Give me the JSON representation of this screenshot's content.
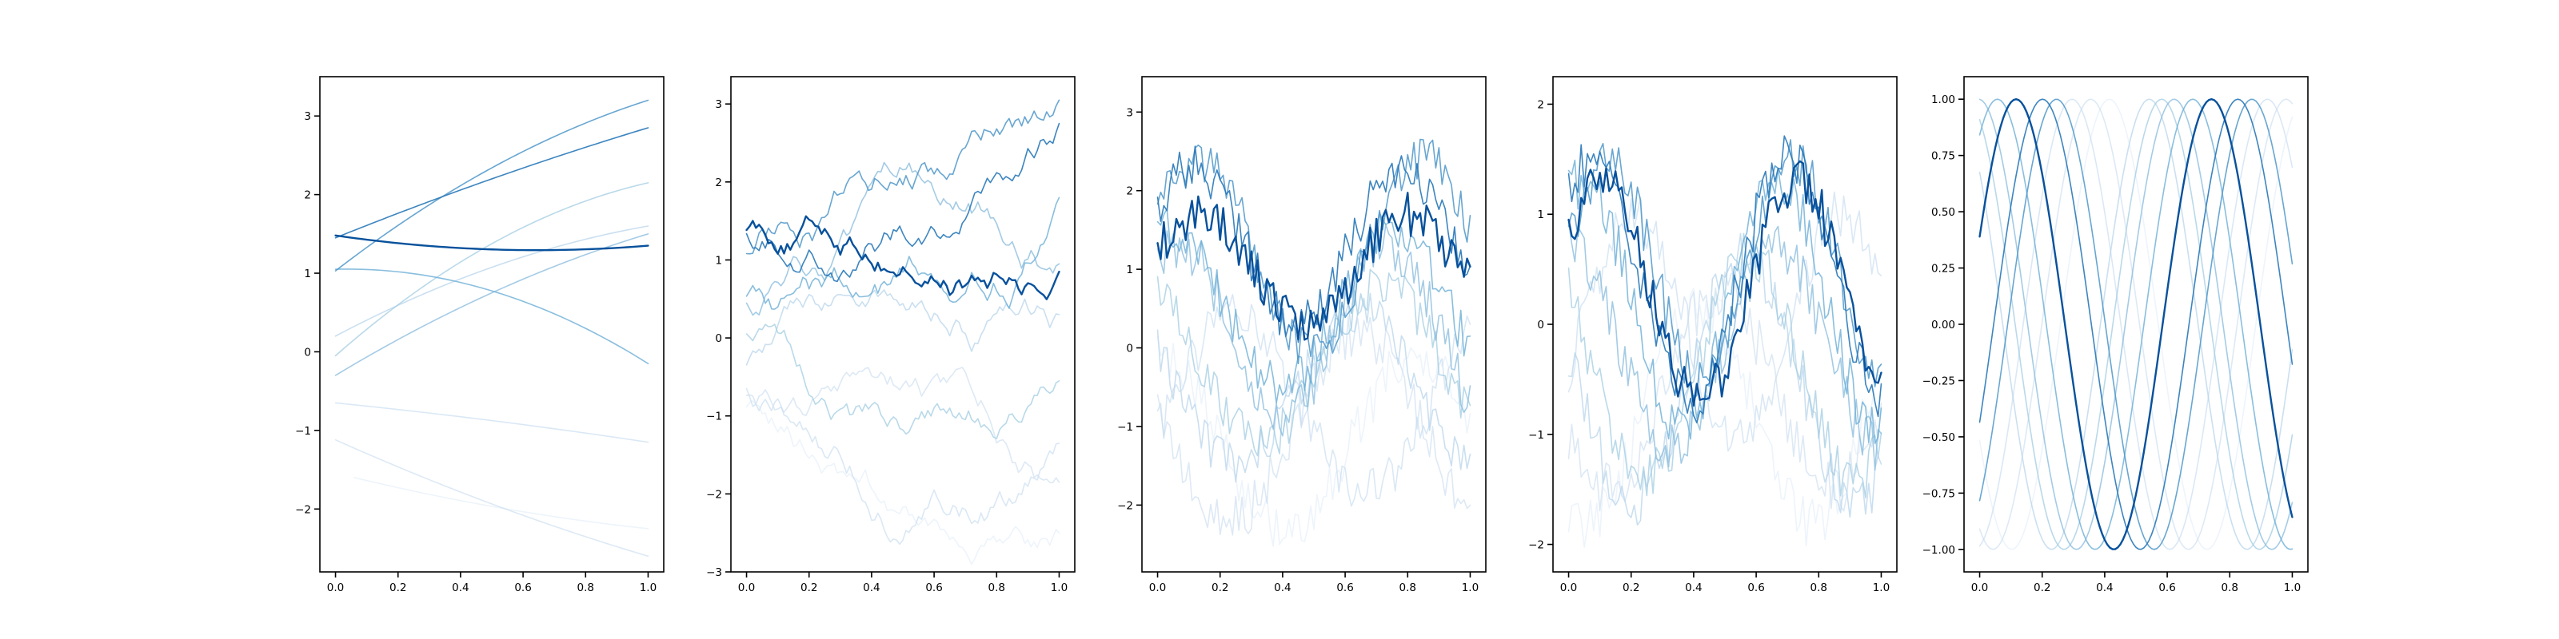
{
  "palette": {
    "series_colors": [
      "#deebf7",
      "#c6dbef",
      "#c6dbef",
      "#b3d1ea",
      "#9ecae1",
      "#86b9dc",
      "#6baed6",
      "#4d97c9",
      "#2878b8",
      "#08519c"
    ],
    "series_opacity": [
      0.55,
      0.6,
      0.65,
      0.7,
      0.72,
      0.75,
      0.8,
      0.85,
      0.9,
      1.0
    ]
  },
  "chart_data": [
    {
      "type": "line",
      "generator": "polynomial",
      "xlim": [
        -0.05,
        1.05
      ],
      "ylim": [
        -2.8,
        3.5
      ],
      "xticks": [
        "0.0",
        "0.2",
        "0.4",
        "0.6",
        "0.8",
        "1.0"
      ],
      "yticks": [
        "−2",
        "−1",
        "0",
        "1",
        "2",
        "3"
      ],
      "series": [
        {
          "x_start": 0.0,
          "y0": 1.48,
          "y1": 1.35,
          "curv": 0.45
        },
        {
          "x_start": 0.0,
          "y0": 1.45,
          "y1": 2.85,
          "curv": -0.2
        },
        {
          "x_start": 0.0,
          "y0": 1.03,
          "y1": 3.2,
          "curv": -0.9
        },
        {
          "x_start": 0.0,
          "y0": 1.05,
          "y1": -0.15,
          "curv": -1.3
        },
        {
          "x_start": 0.0,
          "y0": -0.3,
          "y1": 1.5,
          "curv": -0.6
        },
        {
          "x_start": 0.0,
          "y0": -0.05,
          "y1": 2.15,
          "curv": -1.3
        },
        {
          "x_start": 0.0,
          "y0": 0.2,
          "y1": 1.6,
          "curv": -0.7
        },
        {
          "x_start": 0.0,
          "y0": -0.65,
          "y1": -1.15,
          "curv": -0.1
        },
        {
          "x_start": 0.0,
          "y0": -1.12,
          "y1": -2.6,
          "curv": 0.3
        },
        {
          "x_start": 0.06,
          "y0": -1.6,
          "y1": -2.25,
          "curv": 0.25
        }
      ]
    },
    {
      "type": "line",
      "generator": "random_walk",
      "xlim": [
        -0.05,
        1.05
      ],
      "ylim": [
        -3.0,
        3.35
      ],
      "xticks": [
        "0.0",
        "0.2",
        "0.4",
        "0.6",
        "0.8",
        "1.0"
      ],
      "yticks": [
        "−3",
        "−2",
        "−1",
        "0",
        "1",
        "2",
        "3"
      ],
      "series": [
        {
          "y0": 1.5,
          "y1": 0.85,
          "jitter": 0.12,
          "drift": 0.15
        },
        {
          "y0": 1.45,
          "y1": 2.75,
          "jitter": 0.12,
          "drift": 0.4
        },
        {
          "y0": 1.2,
          "y1": 3.05,
          "jitter": 0.13,
          "drift": 0.3
        },
        {
          "y0": 0.65,
          "y1": 1.8,
          "jitter": 0.13,
          "drift": 0.5
        },
        {
          "y0": 0.55,
          "y1": 0.95,
          "jitter": 0.12,
          "drift": 0.4
        },
        {
          "y0": 0.15,
          "y1": -0.55,
          "jitter": 0.12,
          "drift": 0.6
        },
        {
          "y0": -0.25,
          "y1": 0.3,
          "jitter": 0.12,
          "drift": 0.5
        },
        {
          "y0": -0.55,
          "y1": -1.35,
          "jitter": 0.13,
          "drift": 0.7
        },
        {
          "y0": -0.65,
          "y1": -1.85,
          "jitter": 0.12,
          "drift": 0.5
        },
        {
          "y0": -0.8,
          "y1": -2.5,
          "jitter": 0.12,
          "drift": 0.6
        }
      ]
    },
    {
      "type": "line",
      "generator": "sine_noise",
      "xlim": [
        -0.05,
        1.05
      ],
      "ylim": [
        -2.85,
        3.45
      ],
      "xticks": [
        "0.0",
        "0.2",
        "0.4",
        "0.6",
        "0.8",
        "1.0"
      ],
      "yticks": [
        "−2",
        "−1",
        "0",
        "1",
        "2",
        "3"
      ],
      "series": [
        {
          "phase": 0.3,
          "amp": 0.7,
          "offset": 1.0,
          "freq": 1.5,
          "noise": 0.28
        },
        {
          "phase": 0.5,
          "amp": 1.0,
          "offset": 1.3,
          "freq": 1.5,
          "noise": 0.28
        },
        {
          "phase": 0.4,
          "amp": 1.2,
          "offset": 1.2,
          "freq": 1.4,
          "noise": 0.3
        },
        {
          "phase": 1.2,
          "amp": 1.0,
          "offset": 0.5,
          "freq": 1.4,
          "noise": 0.3
        },
        {
          "phase": 0.9,
          "amp": 1.1,
          "offset": 0.2,
          "freq": 1.5,
          "noise": 0.32
        },
        {
          "phase": 2.0,
          "amp": 1.0,
          "offset": -0.2,
          "freq": 1.3,
          "noise": 0.3
        },
        {
          "phase": 2.6,
          "amp": 1.0,
          "offset": -0.5,
          "freq": 1.3,
          "noise": 0.3
        },
        {
          "phase": -0.3,
          "amp": 1.1,
          "offset": -0.7,
          "freq": 1.2,
          "noise": 0.3
        },
        {
          "phase": 3.0,
          "amp": 1.2,
          "offset": -1.0,
          "freq": 1.2,
          "noise": 0.3
        },
        {
          "phase": 1.6,
          "amp": 1.1,
          "offset": -1.2,
          "freq": 1.2,
          "noise": 0.3
        }
      ]
    },
    {
      "type": "line",
      "generator": "sine_noise",
      "xlim": [
        -0.05,
        1.05
      ],
      "ylim": [
        -2.25,
        2.25
      ],
      "xticks": [
        "0.0",
        "0.2",
        "0.4",
        "0.6",
        "0.8",
        "1.0"
      ],
      "yticks": [
        "−2",
        "−1",
        "0",
        "1",
        "2"
      ],
      "series": [
        {
          "phase": 0.5,
          "amp": 1.0,
          "offset": 0.3,
          "freq": 1.6,
          "noise": 0.22
        },
        {
          "phase": 0.8,
          "amp": 1.1,
          "offset": 0.4,
          "freq": 1.6,
          "noise": 0.22
        },
        {
          "phase": 0.2,
          "amp": 1.0,
          "offset": 0.5,
          "freq": 1.7,
          "noise": 0.22
        },
        {
          "phase": 1.1,
          "amp": 1.1,
          "offset": 0.2,
          "freq": 1.6,
          "noise": 0.24
        },
        {
          "phase": 1.6,
          "amp": 0.9,
          "offset": -0.2,
          "freq": 1.5,
          "noise": 0.24
        },
        {
          "phase": 2.4,
          "amp": 1.0,
          "offset": -0.4,
          "freq": 1.5,
          "noise": 0.24
        },
        {
          "phase": 2.9,
          "amp": 1.1,
          "offset": -0.5,
          "freq": 1.4,
          "noise": 0.24
        },
        {
          "phase": -0.4,
          "amp": 1.0,
          "offset": 0.0,
          "freq": 1.5,
          "noise": 0.24
        },
        {
          "phase": 3.6,
          "amp": 0.9,
          "offset": -0.6,
          "freq": 1.4,
          "noise": 0.25
        },
        {
          "phase": 4.2,
          "amp": 1.0,
          "offset": -0.8,
          "freq": 1.4,
          "noise": 0.25
        }
      ]
    },
    {
      "type": "line",
      "generator": "sine",
      "xlim": [
        -0.05,
        1.05
      ],
      "ylim": [
        -1.1,
        1.1
      ],
      "xticks": [
        "0.0",
        "0.2",
        "0.4",
        "0.6",
        "0.8",
        "1.0"
      ],
      "yticks": [
        "−1.00",
        "−0.75",
        "−0.50",
        "−0.25",
        "0.00",
        "0.25",
        "0.50",
        "0.75",
        "1.00"
      ],
      "series": [
        {
          "phase": 0.4,
          "freq": 1.6
        },
        {
          "phase": -0.45,
          "freq": 1.6
        },
        {
          "phase": -0.9,
          "freq": 1.6
        },
        {
          "phase": 1.0,
          "freq": 1.6
        },
        {
          "phase": 1.6,
          "freq": 1.6
        },
        {
          "phase": 2.0,
          "freq": 1.6
        },
        {
          "phase": 2.4,
          "freq": 1.6
        },
        {
          "phase": -1.4,
          "freq": 1.6
        },
        {
          "phase": -2.0,
          "freq": 1.6
        },
        {
          "phase": -2.6,
          "freq": 1.6
        }
      ]
    }
  ]
}
